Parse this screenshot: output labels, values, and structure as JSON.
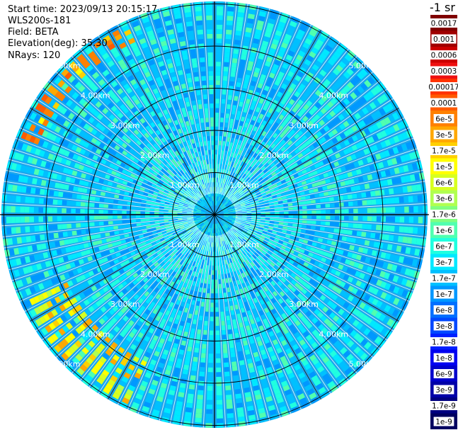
{
  "header": {
    "start_time": "Start time: 2023/09/13 20:15:17",
    "instrument": "WLS200s-181",
    "field": "Field: BETA",
    "elevation": "Elevation(deg): 35.30",
    "nrays": "NRays: 120"
  },
  "colorbar": {
    "unit_label": "-1 sr",
    "labels": [
      "0.0017",
      "0.001",
      "0.0006",
      "0.0003",
      "0.00017",
      "0.0001",
      "6e-5",
      "3e-5",
      "1.7e-5",
      "1e-5",
      "6e-6",
      "3e-6",
      "1.7e-6",
      "1e-6",
      "6e-7",
      "3e-7",
      "1.7e-7",
      "1e-7",
      "6e-8",
      "3e-8",
      "1.7e-8",
      "1e-8",
      "6e-9",
      "3e-9",
      "1.7e-9",
      "1e-9"
    ],
    "colors": [
      "#800000",
      "#a00000",
      "#cc0000",
      "#ee1010",
      "#ff3300",
      "#ff5a00",
      "#ff8000",
      "#ffa800",
      "#ffd000",
      "#ffff00",
      "#d8ff20",
      "#b0ff50",
      "#80ff80",
      "#50ffb0",
      "#20ffe0",
      "#00e8ff",
      "#00c0ff",
      "#0098ff",
      "#0070ff",
      "#0048ff",
      "#0020ff",
      "#0000f0",
      "#0000cc",
      "#0000a8",
      "#000080",
      "#000060"
    ]
  },
  "range_rings": {
    "labels": [
      "1.00km",
      "2.00km",
      "3.00km",
      "4.00km",
      "5.00km"
    ]
  },
  "chart_data": {
    "type": "heatmap",
    "projection": "polar PPI",
    "field": "BETA",
    "n_rays": 120,
    "range_rings_km": [
      1,
      2,
      3,
      4,
      5
    ],
    "max_range_km": 5.1,
    "scale": "log",
    "color_range": [
      1e-09,
      0.0017
    ],
    "background_level": "1e-7 to 1e-6",
    "features": [
      {
        "azimuth_deg": [
          290,
          335
        ],
        "range_km": [
          4.5,
          5.0
        ],
        "value_range": [
          1e-05,
          0.0001
        ]
      },
      {
        "azimuth_deg": [
          205,
          245
        ],
        "range_km": [
          3.9,
          5.0
        ],
        "value_range": [
          3e-06,
          3e-05
        ]
      }
    ]
  }
}
